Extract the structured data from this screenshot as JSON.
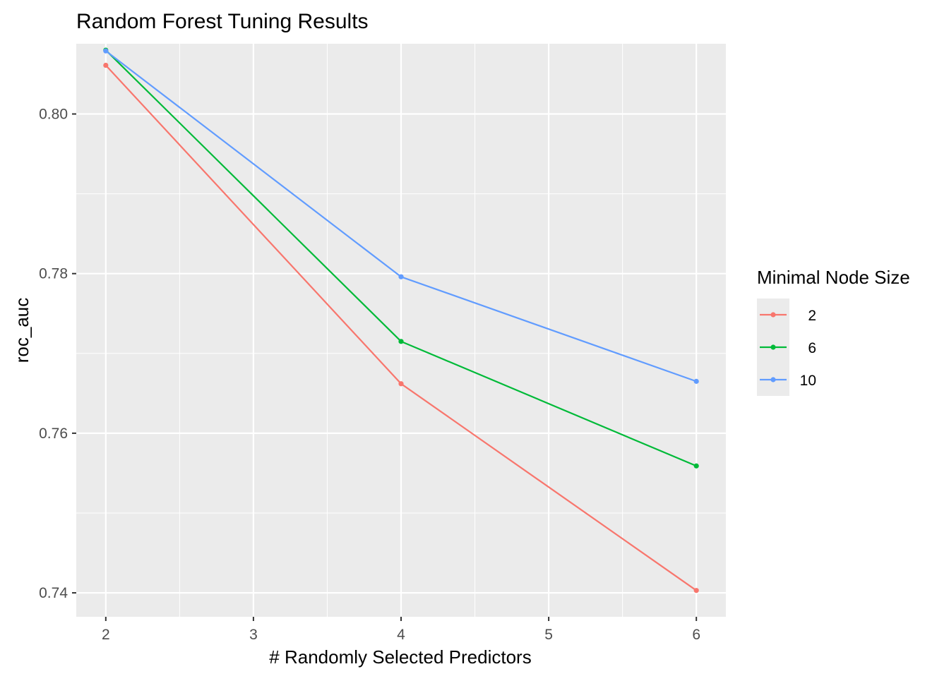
{
  "chart_data": {
    "type": "line",
    "title": "Random Forest Tuning Results",
    "xlabel": "# Randomly Selected Predictors",
    "ylabel": "roc_auc",
    "x": [
      2,
      4,
      6
    ],
    "xlim": [
      1.8,
      6.2
    ],
    "ylim": [
      0.737,
      0.8088
    ],
    "xticks": [
      2,
      3,
      4,
      5,
      6
    ],
    "xtick_labels": [
      "2",
      "3",
      "4",
      "5",
      "6"
    ],
    "yticks": [
      0.74,
      0.76,
      0.78,
      0.8
    ],
    "ytick_labels": [
      "0.74",
      "0.76",
      "0.78",
      "0.80"
    ],
    "grid": true,
    "legend": {
      "title": "Minimal Node Size",
      "position": "right"
    },
    "series": [
      {
        "name": "2",
        "color": "#F8766D",
        "values": [
          0.8061,
          0.7662,
          0.7403
        ]
      },
      {
        "name": "6",
        "color": "#00BA38",
        "values": [
          0.808,
          0.7715,
          0.7559
        ]
      },
      {
        "name": "10",
        "color": "#619CFF",
        "values": [
          0.8079,
          0.7796,
          0.7665
        ]
      }
    ]
  }
}
